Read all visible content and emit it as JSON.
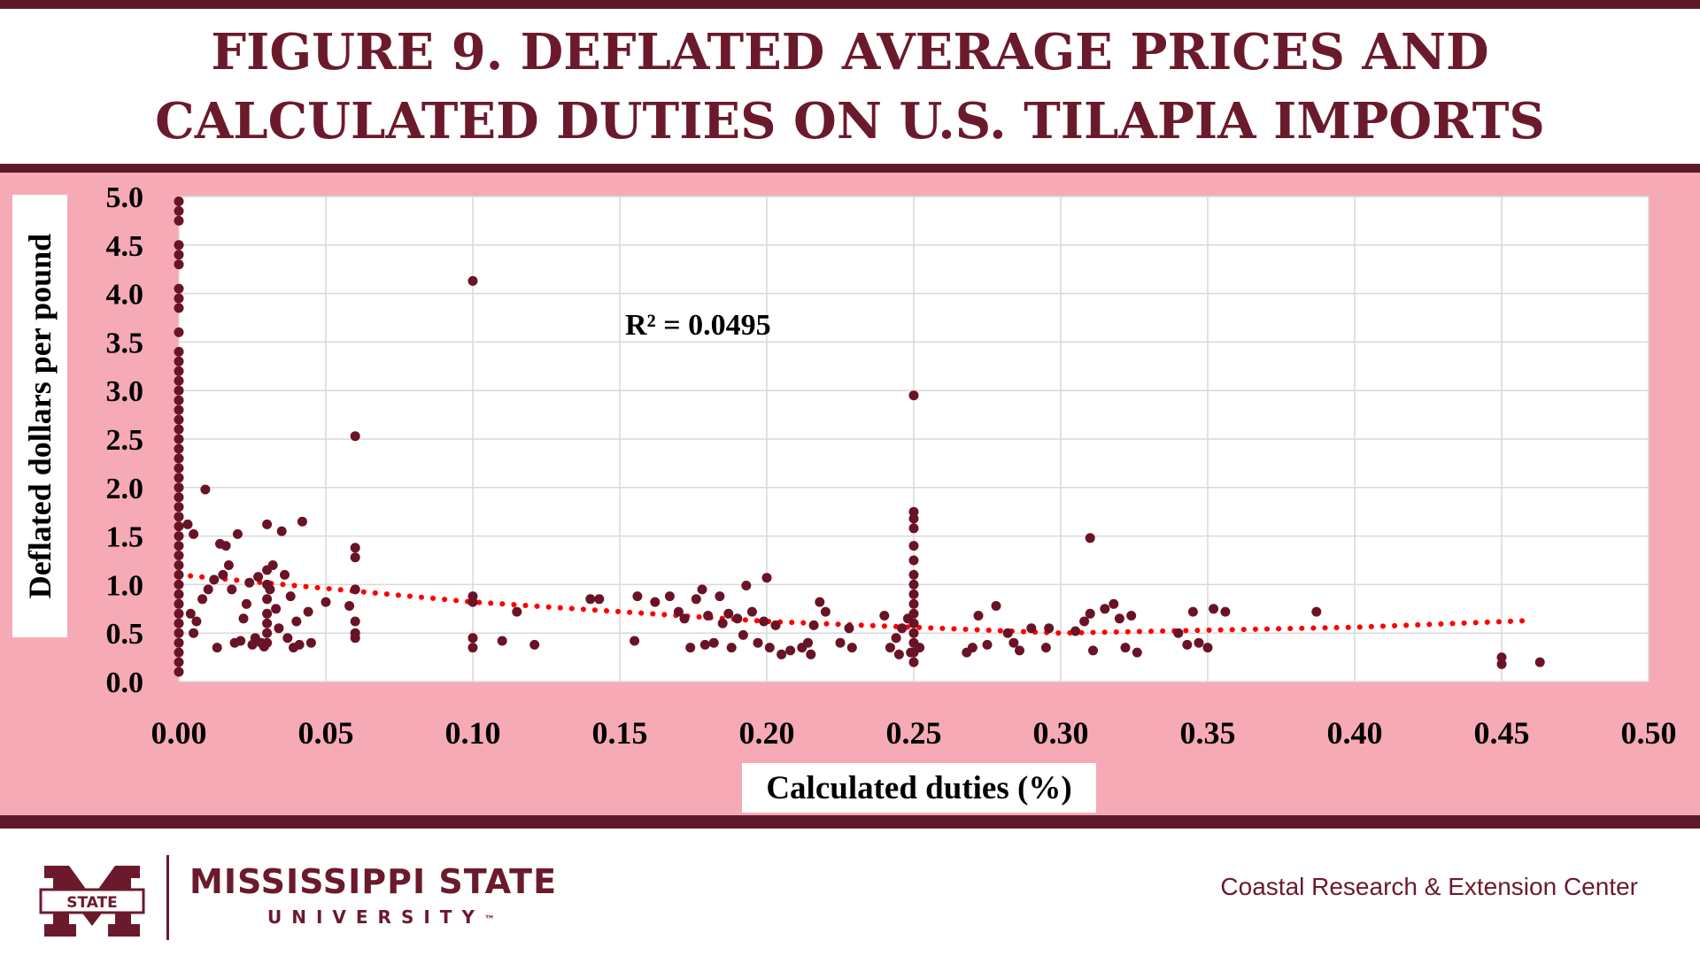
{
  "title": {
    "line1": "FIGURE 9. DEFLATED AVERAGE PRICES AND",
    "line2": "CALCULATED DUTIES ON U.S. TILAPIA IMPORTS"
  },
  "colors": {
    "brand_maroon": "#6b1a2c",
    "band_dark": "#5e1a2a",
    "plot_background": "#f5aab5",
    "point_color": "#6a1326",
    "trendline_color": "#ff0000"
  },
  "chart_data": {
    "type": "scatter",
    "xlabel": "Calculated duties (%)",
    "ylabel": "Deflated dollars per pound",
    "xlim": [
      0,
      0.5
    ],
    "ylim": [
      0,
      5.0
    ],
    "x_ticks": [
      "0.00",
      "0.05",
      "0.10",
      "0.15",
      "0.20",
      "0.25",
      "0.30",
      "0.35",
      "0.40",
      "0.45",
      "0.50"
    ],
    "y_ticks": [
      "0.0",
      "0.5",
      "1.0",
      "1.5",
      "2.0",
      "2.5",
      "3.0",
      "3.5",
      "4.0",
      "4.5",
      "5.0"
    ],
    "grid": true,
    "annotation": "R² = 0.0495",
    "trendline": {
      "type": "polynomial",
      "x": [
        0,
        0.1,
        0.2,
        0.3,
        0.4,
        0.46
      ],
      "y": [
        1.1,
        0.82,
        0.62,
        0.5,
        0.56,
        0.63
      ]
    },
    "points": [
      {
        "x": 0,
        "y": 4.95
      },
      {
        "x": 0,
        "y": 4.85
      },
      {
        "x": 0,
        "y": 4.75
      },
      {
        "x": 0,
        "y": 4.5
      },
      {
        "x": 0,
        "y": 4.4
      },
      {
        "x": 0,
        "y": 4.3
      },
      {
        "x": 0,
        "y": 4.05
      },
      {
        "x": 0,
        "y": 3.95
      },
      {
        "x": 0,
        "y": 3.85
      },
      {
        "x": 0,
        "y": 3.6
      },
      {
        "x": 0,
        "y": 3.4
      },
      {
        "x": 0,
        "y": 3.3
      },
      {
        "x": 0,
        "y": 3.2
      },
      {
        "x": 0,
        "y": 3.1
      },
      {
        "x": 0,
        "y": 3.0
      },
      {
        "x": 0,
        "y": 2.9
      },
      {
        "x": 0,
        "y": 2.8
      },
      {
        "x": 0,
        "y": 2.7
      },
      {
        "x": 0,
        "y": 2.6
      },
      {
        "x": 0,
        "y": 2.5
      },
      {
        "x": 0,
        "y": 2.4
      },
      {
        "x": 0,
        "y": 2.3
      },
      {
        "x": 0,
        "y": 2.2
      },
      {
        "x": 0,
        "y": 2.1
      },
      {
        "x": 0,
        "y": 2.0
      },
      {
        "x": 0,
        "y": 1.9
      },
      {
        "x": 0,
        "y": 1.8
      },
      {
        "x": 0,
        "y": 1.7
      },
      {
        "x": 0,
        "y": 1.6
      },
      {
        "x": 0,
        "y": 1.5
      },
      {
        "x": 0,
        "y": 1.4
      },
      {
        "x": 0,
        "y": 1.3
      },
      {
        "x": 0,
        "y": 1.2
      },
      {
        "x": 0,
        "y": 1.1
      },
      {
        "x": 0,
        "y": 1.0
      },
      {
        "x": 0,
        "y": 0.9
      },
      {
        "x": 0,
        "y": 0.8
      },
      {
        "x": 0,
        "y": 0.7
      },
      {
        "x": 0,
        "y": 0.6
      },
      {
        "x": 0,
        "y": 0.5
      },
      {
        "x": 0,
        "y": 0.4
      },
      {
        "x": 0,
        "y": 0.3
      },
      {
        "x": 0,
        "y": 0.2
      },
      {
        "x": 0,
        "y": 0.1
      },
      {
        "x": 0.003,
        "y": 1.62
      },
      {
        "x": 0.005,
        "y": 1.52
      },
      {
        "x": 0.004,
        "y": 0.7
      },
      {
        "x": 0.005,
        "y": 0.5
      },
      {
        "x": 0.006,
        "y": 0.62
      },
      {
        "x": 0.008,
        "y": 0.85
      },
      {
        "x": 0.009,
        "y": 1.98
      },
      {
        "x": 0.01,
        "y": 0.95
      },
      {
        "x": 0.012,
        "y": 1.05
      },
      {
        "x": 0.013,
        "y": 0.35
      },
      {
        "x": 0.014,
        "y": 1.42
      },
      {
        "x": 0.015,
        "y": 1.1
      },
      {
        "x": 0.016,
        "y": 1.4
      },
      {
        "x": 0.017,
        "y": 1.2
      },
      {
        "x": 0.018,
        "y": 0.95
      },
      {
        "x": 0.019,
        "y": 0.4
      },
      {
        "x": 0.02,
        "y": 1.52
      },
      {
        "x": 0.021,
        "y": 0.42
      },
      {
        "x": 0.022,
        "y": 0.65
      },
      {
        "x": 0.023,
        "y": 0.8
      },
      {
        "x": 0.024,
        "y": 1.02
      },
      {
        "x": 0.025,
        "y": 0.38
      },
      {
        "x": 0.026,
        "y": 0.45
      },
      {
        "x": 0.027,
        "y": 1.08
      },
      {
        "x": 0.028,
        "y": 0.4
      },
      {
        "x": 0.029,
        "y": 0.36
      },
      {
        "x": 0.03,
        "y": 1.62
      },
      {
        "x": 0.03,
        "y": 1.15
      },
      {
        "x": 0.03,
        "y": 1.0
      },
      {
        "x": 0.03,
        "y": 0.85
      },
      {
        "x": 0.03,
        "y": 0.7
      },
      {
        "x": 0.03,
        "y": 0.6
      },
      {
        "x": 0.03,
        "y": 0.5
      },
      {
        "x": 0.03,
        "y": 0.4
      },
      {
        "x": 0.031,
        "y": 0.95
      },
      {
        "x": 0.032,
        "y": 1.2
      },
      {
        "x": 0.033,
        "y": 0.75
      },
      {
        "x": 0.034,
        "y": 0.55
      },
      {
        "x": 0.035,
        "y": 1.55
      },
      {
        "x": 0.036,
        "y": 1.1
      },
      {
        "x": 0.037,
        "y": 0.45
      },
      {
        "x": 0.038,
        "y": 0.88
      },
      {
        "x": 0.039,
        "y": 0.35
      },
      {
        "x": 0.04,
        "y": 0.62
      },
      {
        "x": 0.041,
        "y": 0.38
      },
      {
        "x": 0.042,
        "y": 1.65
      },
      {
        "x": 0.044,
        "y": 0.72
      },
      {
        "x": 0.045,
        "y": 0.4
      },
      {
        "x": 0.05,
        "y": 0.82
      },
      {
        "x": 0.06,
        "y": 2.53
      },
      {
        "x": 0.06,
        "y": 1.38
      },
      {
        "x": 0.06,
        "y": 1.28
      },
      {
        "x": 0.06,
        "y": 0.95
      },
      {
        "x": 0.06,
        "y": 0.62
      },
      {
        "x": 0.06,
        "y": 0.5
      },
      {
        "x": 0.06,
        "y": 0.45
      },
      {
        "x": 0.058,
        "y": 0.78
      },
      {
        "x": 0.1,
        "y": 4.13
      },
      {
        "x": 0.1,
        "y": 0.88
      },
      {
        "x": 0.1,
        "y": 0.82
      },
      {
        "x": 0.1,
        "y": 0.45
      },
      {
        "x": 0.1,
        "y": 0.35
      },
      {
        "x": 0.11,
        "y": 0.42
      },
      {
        "x": 0.115,
        "y": 0.72
      },
      {
        "x": 0.121,
        "y": 0.38
      },
      {
        "x": 0.14,
        "y": 0.85
      },
      {
        "x": 0.143,
        "y": 0.85
      },
      {
        "x": 0.155,
        "y": 0.42
      },
      {
        "x": 0.156,
        "y": 0.88
      },
      {
        "x": 0.162,
        "y": 0.82
      },
      {
        "x": 0.167,
        "y": 0.88
      },
      {
        "x": 0.17,
        "y": 0.72
      },
      {
        "x": 0.172,
        "y": 0.65
      },
      {
        "x": 0.174,
        "y": 0.35
      },
      {
        "x": 0.176,
        "y": 0.85
      },
      {
        "x": 0.178,
        "y": 0.95
      },
      {
        "x": 0.179,
        "y": 0.38
      },
      {
        "x": 0.18,
        "y": 0.68
      },
      {
        "x": 0.182,
        "y": 0.4
      },
      {
        "x": 0.184,
        "y": 0.88
      },
      {
        "x": 0.185,
        "y": 0.6
      },
      {
        "x": 0.187,
        "y": 0.7
      },
      {
        "x": 0.188,
        "y": 0.35
      },
      {
        "x": 0.19,
        "y": 0.65
      },
      {
        "x": 0.192,
        "y": 0.48
      },
      {
        "x": 0.193,
        "y": 0.99
      },
      {
        "x": 0.195,
        "y": 0.72
      },
      {
        "x": 0.197,
        "y": 0.4
      },
      {
        "x": 0.199,
        "y": 0.62
      },
      {
        "x": 0.2,
        "y": 1.07
      },
      {
        "x": 0.201,
        "y": 0.35
      },
      {
        "x": 0.203,
        "y": 0.58
      },
      {
        "x": 0.205,
        "y": 0.28
      },
      {
        "x": 0.208,
        "y": 0.32
      },
      {
        "x": 0.212,
        "y": 0.35
      },
      {
        "x": 0.214,
        "y": 0.4
      },
      {
        "x": 0.215,
        "y": 0.28
      },
      {
        "x": 0.216,
        "y": 0.58
      },
      {
        "x": 0.218,
        "y": 0.82
      },
      {
        "x": 0.22,
        "y": 0.72
      },
      {
        "x": 0.225,
        "y": 0.4
      },
      {
        "x": 0.228,
        "y": 0.55
      },
      {
        "x": 0.229,
        "y": 0.35
      },
      {
        "x": 0.24,
        "y": 0.68
      },
      {
        "x": 0.242,
        "y": 0.35
      },
      {
        "x": 0.244,
        "y": 0.45
      },
      {
        "x": 0.245,
        "y": 0.28
      },
      {
        "x": 0.246,
        "y": 0.55
      },
      {
        "x": 0.248,
        "y": 0.65
      },
      {
        "x": 0.249,
        "y": 0.3
      },
      {
        "x": 0.25,
        "y": 2.95
      },
      {
        "x": 0.25,
        "y": 1.75
      },
      {
        "x": 0.25,
        "y": 1.68
      },
      {
        "x": 0.25,
        "y": 1.58
      },
      {
        "x": 0.25,
        "y": 1.4
      },
      {
        "x": 0.25,
        "y": 1.25
      },
      {
        "x": 0.25,
        "y": 1.1
      },
      {
        "x": 0.25,
        "y": 1.0
      },
      {
        "x": 0.25,
        "y": 0.9
      },
      {
        "x": 0.25,
        "y": 0.8
      },
      {
        "x": 0.25,
        "y": 0.7
      },
      {
        "x": 0.25,
        "y": 0.6
      },
      {
        "x": 0.25,
        "y": 0.5
      },
      {
        "x": 0.25,
        "y": 0.4
      },
      {
        "x": 0.25,
        "y": 0.3
      },
      {
        "x": 0.25,
        "y": 0.2
      },
      {
        "x": 0.252,
        "y": 0.35
      },
      {
        "x": 0.268,
        "y": 0.3
      },
      {
        "x": 0.27,
        "y": 0.35
      },
      {
        "x": 0.272,
        "y": 0.68
      },
      {
        "x": 0.275,
        "y": 0.38
      },
      {
        "x": 0.278,
        "y": 0.78
      },
      {
        "x": 0.282,
        "y": 0.5
      },
      {
        "x": 0.284,
        "y": 0.4
      },
      {
        "x": 0.286,
        "y": 0.32
      },
      {
        "x": 0.29,
        "y": 0.55
      },
      {
        "x": 0.295,
        "y": 0.35
      },
      {
        "x": 0.296,
        "y": 0.55
      },
      {
        "x": 0.305,
        "y": 0.52
      },
      {
        "x": 0.308,
        "y": 0.62
      },
      {
        "x": 0.31,
        "y": 1.48
      },
      {
        "x": 0.31,
        "y": 0.7
      },
      {
        "x": 0.311,
        "y": 0.32
      },
      {
        "x": 0.315,
        "y": 0.75
      },
      {
        "x": 0.318,
        "y": 0.8
      },
      {
        "x": 0.32,
        "y": 0.65
      },
      {
        "x": 0.322,
        "y": 0.35
      },
      {
        "x": 0.324,
        "y": 0.68
      },
      {
        "x": 0.326,
        "y": 0.3
      },
      {
        "x": 0.34,
        "y": 0.5
      },
      {
        "x": 0.343,
        "y": 0.38
      },
      {
        "x": 0.345,
        "y": 0.72
      },
      {
        "x": 0.347,
        "y": 0.4
      },
      {
        "x": 0.35,
        "y": 0.35
      },
      {
        "x": 0.352,
        "y": 0.75
      },
      {
        "x": 0.356,
        "y": 0.72
      },
      {
        "x": 0.387,
        "y": 0.72
      },
      {
        "x": 0.45,
        "y": 0.25
      },
      {
        "x": 0.45,
        "y": 0.18
      },
      {
        "x": 0.463,
        "y": 0.2
      }
    ]
  },
  "footer": {
    "university_name": "MISSISSIPPI STATE",
    "university_sub": "UNIVERSITY",
    "tm": "™",
    "logo_text": "STATE",
    "center_name": "Coastal Research & Extension Center"
  }
}
